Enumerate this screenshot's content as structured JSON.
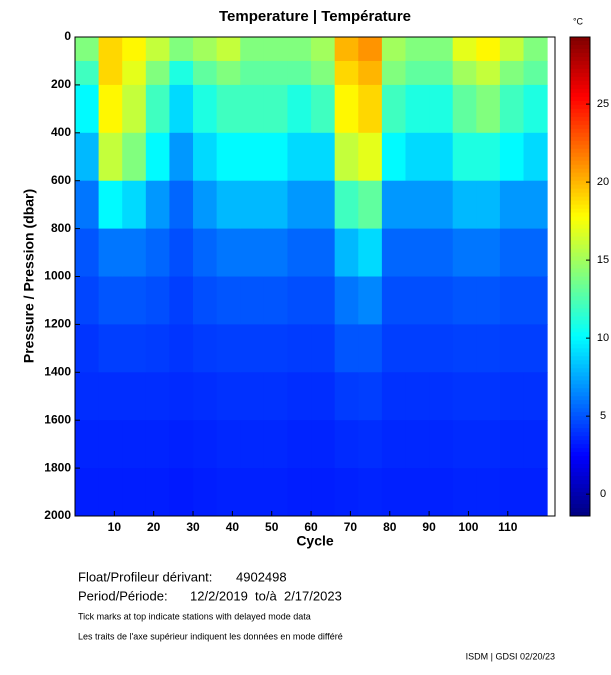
{
  "chart_data": {
    "type": "heatmap",
    "title": "Temperature | Température",
    "xlabel": "Cycle",
    "ylabel": "Pressure / Pression (dbar)",
    "xlim": [
      0,
      122
    ],
    "xticks": [
      10,
      20,
      30,
      40,
      50,
      60,
      70,
      80,
      90,
      100,
      110
    ],
    "ylim": [
      0,
      2000
    ],
    "y_inverted": true,
    "yticks": [
      0,
      200,
      400,
      600,
      800,
      1000,
      1200,
      1400,
      1600,
      1800,
      2000
    ],
    "colormap": "jet",
    "clim": [
      -1.4,
      29.3
    ],
    "cticks": [
      0,
      5,
      10,
      15,
      20,
      25
    ],
    "colorbar_label": "°C",
    "xbins": [
      0,
      6,
      12,
      18,
      24,
      30,
      36,
      42,
      48,
      54,
      60,
      66,
      72,
      78,
      84,
      90,
      96,
      102,
      108,
      114,
      120
    ],
    "ybins": [
      0,
      100,
      200,
      400,
      600,
      800,
      1000,
      1200,
      1400,
      1600,
      1800,
      2000
    ],
    "values": [
      [
        14,
        12,
        10,
        8,
        6,
        5,
        4.5,
        4,
        3.8,
        3.5,
        3.3
      ],
      [
        19,
        19,
        18,
        16,
        10,
        6,
        5,
        4.3,
        3.8,
        3.5,
        3.3
      ],
      [
        18,
        17,
        16,
        14,
        9,
        6,
        5,
        4.3,
        3.8,
        3.5,
        3.3
      ],
      [
        16,
        14,
        12,
        10,
        7,
        5.5,
        4.8,
        4.2,
        3.8,
        3.5,
        3.3
      ],
      [
        14,
        11,
        9,
        7,
        5.5,
        4.8,
        4.3,
        4,
        3.7,
        3.4,
        3.2
      ],
      [
        15,
        13,
        11,
        9,
        7,
        5.5,
        4.8,
        4.2,
        3.8,
        3.5,
        3.3
      ],
      [
        16,
        14,
        12,
        10,
        8,
        6,
        5,
        4.3,
        3.9,
        3.6,
        3.4
      ],
      [
        14,
        13,
        12,
        10,
        8,
        6,
        5,
        4.3,
        3.9,
        3.6,
        3.4
      ],
      [
        14,
        13,
        12,
        10,
        8,
        6,
        5,
        4.3,
        3.9,
        3.6,
        3.4
      ],
      [
        14,
        13,
        11,
        9,
        7,
        5.5,
        4.8,
        4.2,
        3.8,
        3.5,
        3.3
      ],
      [
        15,
        14,
        12,
        9,
        7,
        5.5,
        4.8,
        4.2,
        3.8,
        3.5,
        3.3
      ],
      [
        20,
        19,
        18,
        16,
        12,
        8,
        6,
        5,
        4.2,
        3.7,
        3.4
      ],
      [
        21,
        20,
        19,
        17,
        13,
        9,
        6.5,
        5,
        4.3,
        3.8,
        3.5
      ],
      [
        15,
        14,
        12,
        10,
        7,
        5.5,
        4.8,
        4.3,
        3.9,
        3.6,
        3.4
      ],
      [
        14,
        13,
        11,
        9,
        7,
        5.5,
        4.8,
        4.3,
        3.9,
        3.6,
        3.4
      ],
      [
        14,
        13,
        11,
        9,
        7,
        5.5,
        4.8,
        4.3,
        3.9,
        3.6,
        3.4
      ],
      [
        17,
        15,
        13,
        11,
        8,
        6,
        5,
        4.4,
        4,
        3.7,
        3.5
      ],
      [
        18,
        16,
        14,
        11,
        8,
        6,
        5,
        4.4,
        4,
        3.7,
        3.5
      ],
      [
        16,
        14,
        12,
        10,
        7,
        5.5,
        4.8,
        4.3,
        3.9,
        3.6,
        3.4
      ],
      [
        14,
        13,
        11,
        9,
        7,
        5.5,
        4.8,
        4.3,
        3.9,
        3.6,
        3.4
      ]
    ],
    "float_label": "Float/Profileur dérivant:",
    "float_id": "4902498",
    "period_label": "Period/Période:",
    "period": "12/2/2019  to/à  2/17/2023",
    "note_en": "Tick marks at top indicate stations with delayed mode data",
    "note_fr": "Les traits de l'axe supérieur indiquent les données en mode différé",
    "credit": "ISDM | GDSI 02/20/23"
  }
}
